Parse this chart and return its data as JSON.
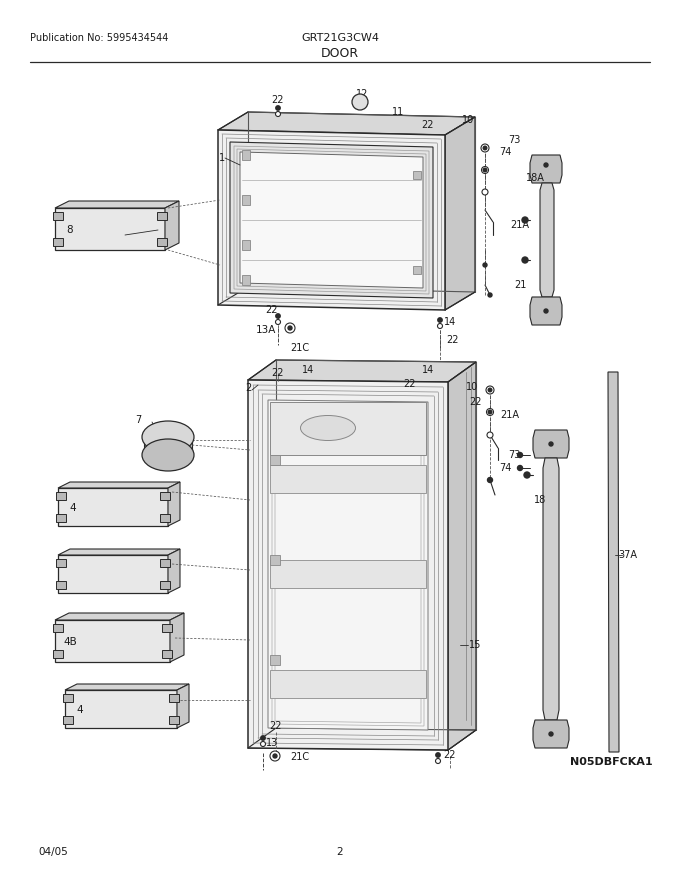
{
  "title": "DOOR",
  "pub_no": "Publication No: 5995434544",
  "model": "GRT21G3CW4",
  "diagram_id": "N05DBFCKA1",
  "date": "04/05",
  "page": "2",
  "bg_color": "#ffffff",
  "lc": "#2a2a2a",
  "tc": "#1a1a1a",
  "figsize": [
    6.8,
    8.8
  ],
  "dpi": 100
}
